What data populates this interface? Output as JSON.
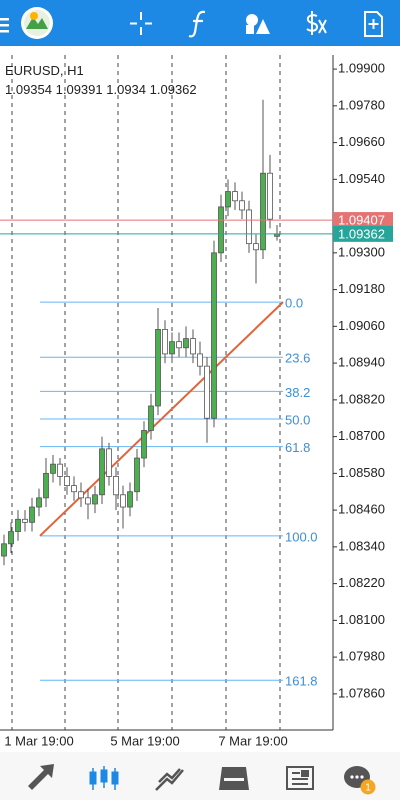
{
  "chart_data": {
    "type": "candlestick",
    "symbol": "EURUSD, H1",
    "open": [
      1.0831,
      1.0835,
      1.0839,
      1.0843,
      1.0842,
      1.0847,
      1.085,
      1.0858,
      1.0861,
      1.0857,
      1.0854,
      1.0852,
      1.085,
      1.0848,
      1.0851,
      1.0866,
      1.0857,
      1.0851,
      1.0847,
      1.0852,
      1.0863,
      1.0872,
      1.088,
      1.0905,
      1.0897,
      1.0901,
      1.0899,
      1.0902,
      1.0897,
      1.0893,
      1.0876,
      1.093,
      1.0945,
      1.095,
      1.0947,
      1.0944,
      1.0933,
      1.0931,
      1.0956,
      1.09354
    ],
    "high": [
      1.0838,
      1.0842,
      1.0846,
      1.0846,
      1.085,
      1.0853,
      1.0863,
      1.0864,
      1.0863,
      1.086,
      1.0857,
      1.0855,
      1.0853,
      1.0854,
      1.087,
      1.0868,
      1.086,
      1.0854,
      1.0855,
      1.0866,
      1.0875,
      1.0884,
      1.0912,
      1.0908,
      1.0904,
      1.0904,
      1.0906,
      1.0905,
      1.0901,
      1.0896,
      1.0934,
      1.0949,
      1.0954,
      1.0953,
      1.095,
      1.0947,
      1.0936,
      1.098,
      1.0962,
      1.09391
    ],
    "low": [
      1.0828,
      1.0832,
      1.0836,
      1.0839,
      1.0839,
      1.0844,
      1.0847,
      1.0855,
      1.0854,
      1.0851,
      1.0849,
      1.0847,
      1.0843,
      1.0845,
      1.0848,
      1.0854,
      1.0846,
      1.084,
      1.0844,
      1.0849,
      1.086,
      1.0869,
      1.0877,
      1.0894,
      1.0894,
      1.0896,
      1.0896,
      1.0894,
      1.089,
      1.0868,
      1.0873,
      1.0927,
      1.0942,
      1.0944,
      1.0941,
      1.093,
      1.092,
      1.0928,
      1.0938,
      1.0934
    ],
    "close": [
      1.0835,
      1.0839,
      1.0843,
      1.0842,
      1.0847,
      1.085,
      1.0858,
      1.0861,
      1.0857,
      1.0854,
      1.0852,
      1.085,
      1.0848,
      1.0851,
      1.0866,
      1.0857,
      1.0851,
      1.0847,
      1.0852,
      1.0863,
      1.0872,
      1.088,
      1.0905,
      1.0897,
      1.0901,
      1.0899,
      1.0902,
      1.0897,
      1.0893,
      1.0876,
      1.093,
      1.0945,
      1.095,
      1.0947,
      1.0944,
      1.0933,
      1.0931,
      1.0956,
      1.0941,
      1.09362
    ],
    "up_color": "#4caf50",
    "down_color": "#ffffff",
    "wick_color": "#555555",
    "ylim": [
      1.07742,
      1.09946
    ],
    "yticks": [
      {
        "value": 1.099,
        "label": "1.09900"
      },
      {
        "value": 1.0978,
        "label": "1.09780"
      },
      {
        "value": 1.0966,
        "label": "1.09660"
      },
      {
        "value": 1.0954,
        "label": "1.09540"
      },
      {
        "value": 1.093,
        "label": "1.09300"
      },
      {
        "value": 1.0918,
        "label": "1.09180"
      },
      {
        "value": 1.0906,
        "label": "1.09060"
      },
      {
        "value": 1.0894,
        "label": "1.08940"
      },
      {
        "value": 1.0882,
        "label": "1.08820"
      },
      {
        "value": 1.087,
        "label": "1.08700"
      },
      {
        "value": 1.0858,
        "label": "1.08580"
      },
      {
        "value": 1.0846,
        "label": "1.08460"
      },
      {
        "value": 1.0834,
        "label": "1.08340"
      },
      {
        "value": 1.0822,
        "label": "1.08220"
      },
      {
        "value": 1.081,
        "label": "1.08100"
      },
      {
        "value": 1.0798,
        "label": "1.07980"
      },
      {
        "value": 1.0786,
        "label": "1.07860"
      }
    ],
    "time_labels": [
      "1 Mar 19:00",
      "5 Mar 19:00",
      "7 Mar 19:00"
    ],
    "price_lines": [
      {
        "value": 1.09407,
        "color": "#e57373"
      },
      {
        "value": 1.09362,
        "color": "#26a69a"
      }
    ],
    "fibonacci": {
      "high": 1.09139,
      "low": 1.08376,
      "color": "#64b5f6",
      "trend_color": "#e0633a",
      "levels": [
        0,
        23.6,
        38.2,
        50,
        61.8,
        100,
        161.8
      ],
      "value_labels": [
        "0.0",
        "23.6",
        "38.2",
        "50.0",
        "61.8",
        "100.0",
        "161.8"
      ]
    },
    "notification_count": 1
  }
}
